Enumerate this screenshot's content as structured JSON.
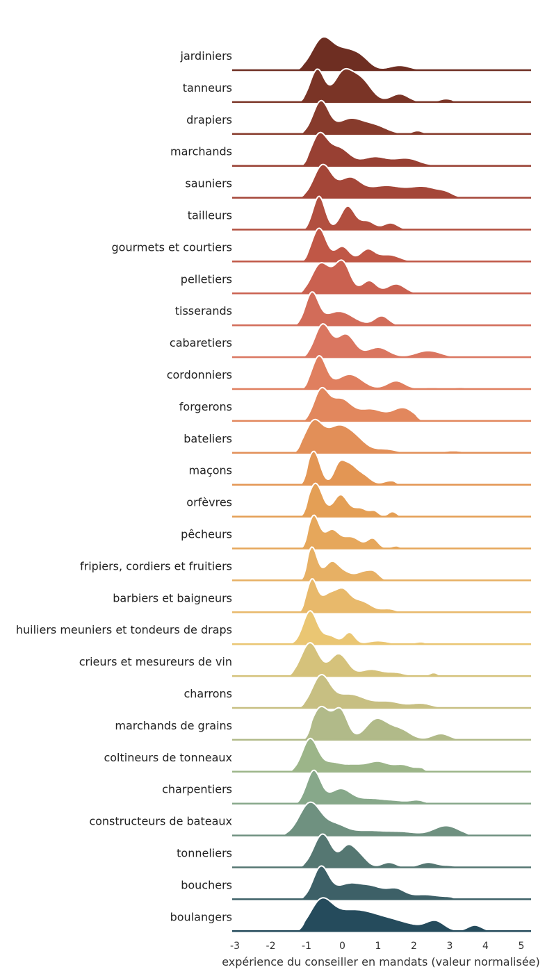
{
  "chart_data": {
    "type": "ridgeline",
    "title": "",
    "xlabel": "expérience du conseiller en mandats (valeur normalisée)",
    "ylabel": "",
    "xlim": [
      -3,
      5.3
    ],
    "xticks": [
      -3,
      -2,
      -1,
      0,
      1,
      2,
      3,
      4,
      5
    ],
    "xtick_labels": [
      "-3",
      "-2",
      "-1",
      "0",
      "1",
      "2",
      "3",
      "4",
      "5"
    ],
    "grid": false,
    "series": [
      {
        "name": "jardiniers",
        "color": "#6e2e22",
        "start": -1.35,
        "end": 2.45,
        "components": [
          [
            -0.55,
            0.3,
            1.0
          ],
          [
            0.1,
            0.3,
            0.55
          ],
          [
            0.55,
            0.25,
            0.3
          ],
          [
            1.6,
            0.3,
            0.15
          ]
        ]
      },
      {
        "name": "tanneurs",
        "color": "#7a3426",
        "start": -1.3,
        "end": 3.3,
        "components": [
          [
            -0.7,
            0.2,
            1.0
          ],
          [
            0.0,
            0.25,
            0.8
          ],
          [
            0.5,
            0.3,
            0.7
          ],
          [
            1.6,
            0.25,
            0.25
          ],
          [
            2.9,
            0.2,
            0.1
          ]
        ]
      },
      {
        "name": "drapiers",
        "color": "#873b2c",
        "start": -1.3,
        "end": 3.8,
        "components": [
          [
            -0.6,
            0.22,
            1.0
          ],
          [
            0.2,
            0.35,
            0.45
          ],
          [
            0.9,
            0.35,
            0.25
          ],
          [
            2.1,
            0.15,
            0.1
          ],
          [
            3.2,
            0.2,
            0.05
          ]
        ]
      },
      {
        "name": "marchands",
        "color": "#984033",
        "start": -1.2,
        "end": 3.7,
        "components": [
          [
            -0.65,
            0.22,
            1.0
          ],
          [
            -0.1,
            0.3,
            0.6
          ],
          [
            0.9,
            0.35,
            0.3
          ],
          [
            1.8,
            0.35,
            0.25
          ],
          [
            3.0,
            0.3,
            0.05
          ]
        ]
      },
      {
        "name": "sauniers",
        "color": "#a44638",
        "start": -1.3,
        "end": 3.5,
        "components": [
          [
            -0.55,
            0.25,
            0.95
          ],
          [
            0.2,
            0.3,
            0.55
          ],
          [
            1.2,
            0.5,
            0.35
          ],
          [
            2.3,
            0.4,
            0.3
          ],
          [
            2.9,
            0.2,
            0.1
          ]
        ]
      },
      {
        "name": "tailleurs",
        "color": "#b24f3f",
        "start": -1.2,
        "end": 2.0,
        "components": [
          [
            -0.65,
            0.17,
            1.0
          ],
          [
            0.15,
            0.2,
            0.7
          ],
          [
            0.7,
            0.2,
            0.25
          ],
          [
            1.35,
            0.2,
            0.2
          ]
        ]
      },
      {
        "name": "gourmets et courtiers",
        "color": "#c05746",
        "start": -1.2,
        "end": 2.1,
        "components": [
          [
            -0.65,
            0.2,
            1.0
          ],
          [
            0.0,
            0.2,
            0.45
          ],
          [
            0.7,
            0.2,
            0.35
          ],
          [
            1.3,
            0.3,
            0.2
          ]
        ]
      },
      {
        "name": "pelletiers",
        "color": "#ca6150",
        "start": -1.3,
        "end": 3.5,
        "components": [
          [
            -0.6,
            0.25,
            0.95
          ],
          [
            0.0,
            0.22,
            1.0
          ],
          [
            0.75,
            0.2,
            0.4
          ],
          [
            1.5,
            0.25,
            0.3
          ],
          [
            2.8,
            0.3,
            0.05
          ]
        ]
      },
      {
        "name": "tisserands",
        "color": "#d26c59",
        "start": -1.45,
        "end": 3.0,
        "components": [
          [
            -0.85,
            0.18,
            1.0
          ],
          [
            -0.1,
            0.4,
            0.45
          ],
          [
            1.1,
            0.2,
            0.3
          ],
          [
            2.6,
            0.3,
            0.05
          ]
        ]
      },
      {
        "name": "cabaretiers",
        "color": "#da7660",
        "start": -1.2,
        "end": 3.6,
        "components": [
          [
            -0.55,
            0.22,
            1.0
          ],
          [
            0.1,
            0.25,
            0.7
          ],
          [
            1.0,
            0.3,
            0.3
          ],
          [
            2.4,
            0.35,
            0.2
          ]
        ]
      },
      {
        "name": "cordonniers",
        "color": "#e07f5f",
        "start": -1.2,
        "end": 3.7,
        "components": [
          [
            -0.65,
            0.2,
            1.0
          ],
          [
            0.2,
            0.35,
            0.45
          ],
          [
            1.5,
            0.25,
            0.25
          ],
          [
            2.5,
            0.3,
            0.05
          ],
          [
            3.3,
            0.2,
            0.05
          ]
        ]
      },
      {
        "name": "forgerons",
        "color": "#e2875d",
        "start": -1.2,
        "end": 2.3,
        "components": [
          [
            -0.6,
            0.2,
            1.0
          ],
          [
            -0.05,
            0.3,
            0.75
          ],
          [
            0.8,
            0.35,
            0.4
          ],
          [
            1.7,
            0.3,
            0.45
          ]
        ]
      },
      {
        "name": "bateliers",
        "color": "#e28f58",
        "start": -1.4,
        "end": 3.6,
        "components": [
          [
            -0.8,
            0.25,
            1.0
          ],
          [
            -0.15,
            0.3,
            0.75
          ],
          [
            0.35,
            0.3,
            0.45
          ],
          [
            1.2,
            0.3,
            0.12
          ],
          [
            3.1,
            0.3,
            0.07
          ]
        ]
      },
      {
        "name": "maçons",
        "color": "#e39654",
        "start": -1.2,
        "end": 1.7,
        "components": [
          [
            -0.8,
            0.18,
            1.0
          ],
          [
            -0.1,
            0.15,
            0.5
          ],
          [
            0.2,
            0.2,
            0.55
          ],
          [
            0.6,
            0.2,
            0.25
          ],
          [
            1.35,
            0.2,
            0.12
          ]
        ]
      },
      {
        "name": "orfèvres",
        "color": "#e49f55",
        "start": -1.2,
        "end": 1.8,
        "components": [
          [
            -0.75,
            0.2,
            1.0
          ],
          [
            -0.05,
            0.2,
            0.65
          ],
          [
            0.5,
            0.2,
            0.25
          ],
          [
            0.9,
            0.12,
            0.15
          ],
          [
            1.4,
            0.12,
            0.15
          ]
        ]
      },
      {
        "name": "pêcheurs",
        "color": "#e6a75b",
        "start": -1.2,
        "end": 1.8,
        "components": [
          [
            -0.8,
            0.16,
            1.0
          ],
          [
            -0.3,
            0.2,
            0.55
          ],
          [
            0.25,
            0.25,
            0.35
          ],
          [
            0.85,
            0.15,
            0.3
          ],
          [
            1.5,
            0.15,
            0.08
          ]
        ]
      },
      {
        "name": "fripiers, cordiers et fruitiers",
        "color": "#e7b064",
        "start": -1.2,
        "end": 2.6,
        "components": [
          [
            -0.85,
            0.15,
            1.0
          ],
          [
            -0.3,
            0.2,
            0.55
          ],
          [
            0.1,
            0.2,
            0.2
          ],
          [
            0.6,
            0.2,
            0.25
          ],
          [
            0.9,
            0.15,
            0.2
          ],
          [
            2.3,
            0.3,
            0.03
          ]
        ]
      },
      {
        "name": "barbiers et baigneurs",
        "color": "#e8b96b",
        "start": -1.3,
        "end": 1.8,
        "components": [
          [
            -0.85,
            0.15,
            1.0
          ],
          [
            -0.4,
            0.2,
            0.5
          ],
          [
            0.0,
            0.2,
            0.6
          ],
          [
            0.5,
            0.3,
            0.35
          ],
          [
            1.3,
            0.2,
            0.1
          ]
        ]
      },
      {
        "name": "huiliers meuniers et tondeurs de draps",
        "color": "#eac673",
        "start": -1.65,
        "end": 2.5,
        "components": [
          [
            -0.9,
            0.2,
            1.0
          ],
          [
            -0.35,
            0.2,
            0.25
          ],
          [
            0.2,
            0.15,
            0.35
          ],
          [
            1.0,
            0.3,
            0.1
          ],
          [
            2.2,
            0.2,
            0.07
          ]
        ]
      },
      {
        "name": "crieurs et mesureurs de vin",
        "color": "#d5c27b",
        "start": -1.6,
        "end": 2.9,
        "components": [
          [
            -0.9,
            0.25,
            1.0
          ],
          [
            -0.2,
            0.2,
            0.45
          ],
          [
            0.05,
            0.2,
            0.35
          ],
          [
            0.8,
            0.3,
            0.2
          ],
          [
            1.5,
            0.25,
            0.1
          ],
          [
            2.55,
            0.12,
            0.1
          ]
        ]
      },
      {
        "name": "charrons",
        "color": "#c7bf82",
        "start": -1.3,
        "end": 3.2,
        "components": [
          [
            -0.6,
            0.25,
            1.0
          ],
          [
            0.2,
            0.45,
            0.45
          ],
          [
            1.3,
            0.35,
            0.2
          ],
          [
            2.2,
            0.3,
            0.15
          ]
        ]
      },
      {
        "name": "marchands de grains",
        "color": "#b1ba89",
        "start": -1.1,
        "end": 3.4,
        "components": [
          [
            -0.6,
            0.25,
            0.8
          ],
          [
            -0.05,
            0.2,
            0.7
          ],
          [
            0.95,
            0.3,
            0.5
          ],
          [
            1.6,
            0.3,
            0.25
          ],
          [
            2.75,
            0.25,
            0.15
          ]
        ]
      },
      {
        "name": "coltineurs de tonneaux",
        "color": "#9cb589",
        "start": -1.6,
        "end": 2.5,
        "components": [
          [
            -0.9,
            0.22,
            1.0
          ],
          [
            -0.3,
            0.25,
            0.25
          ],
          [
            0.3,
            0.3,
            0.2
          ],
          [
            1.0,
            0.3,
            0.3
          ],
          [
            1.7,
            0.25,
            0.2
          ],
          [
            2.2,
            0.15,
            0.1
          ]
        ]
      },
      {
        "name": "charpentiers",
        "color": "#87a88a",
        "start": -1.4,
        "end": 2.6,
        "components": [
          [
            -0.8,
            0.2,
            1.0
          ],
          [
            -0.05,
            0.3,
            0.45
          ],
          [
            0.8,
            0.35,
            0.15
          ],
          [
            1.5,
            0.3,
            0.08
          ],
          [
            2.1,
            0.2,
            0.1
          ]
        ]
      },
      {
        "name": "constructeurs de bateaux",
        "color": "#6f9180",
        "start": -1.8,
        "end": 3.7,
        "components": [
          [
            -0.9,
            0.3,
            1.0
          ],
          [
            -0.2,
            0.3,
            0.3
          ],
          [
            0.7,
            0.5,
            0.15
          ],
          [
            1.7,
            0.4,
            0.1
          ],
          [
            2.9,
            0.35,
            0.3
          ]
        ]
      },
      {
        "name": "tonneliers",
        "color": "#557772",
        "start": -1.3,
        "end": 3.4,
        "components": [
          [
            -0.55,
            0.25,
            1.0
          ],
          [
            0.15,
            0.2,
            0.6
          ],
          [
            0.5,
            0.2,
            0.3
          ],
          [
            1.3,
            0.2,
            0.15
          ],
          [
            2.4,
            0.25,
            0.15
          ],
          [
            3.0,
            0.2,
            0.05
          ]
        ]
      },
      {
        "name": "bouchers",
        "color": "#3d6067",
        "start": -1.3,
        "end": 3.3,
        "components": [
          [
            -0.6,
            0.22,
            1.0
          ],
          [
            0.2,
            0.4,
            0.5
          ],
          [
            0.9,
            0.3,
            0.3
          ],
          [
            1.5,
            0.25,
            0.3
          ],
          [
            2.3,
            0.4,
            0.15
          ],
          [
            3.0,
            0.2,
            0.05
          ]
        ]
      },
      {
        "name": "boulangers",
        "color": "#254b5c",
        "start": -1.3,
        "end": 4.3,
        "components": [
          [
            -0.6,
            0.3,
            0.85
          ],
          [
            0.2,
            0.6,
            0.6
          ],
          [
            1.3,
            0.7,
            0.35
          ],
          [
            2.6,
            0.25,
            0.3
          ],
          [
            3.7,
            0.2,
            0.2
          ]
        ]
      }
    ]
  }
}
